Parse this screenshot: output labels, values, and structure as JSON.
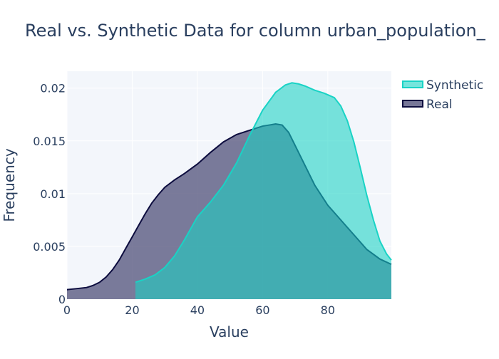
{
  "chart_data": {
    "type": "area",
    "title": "Real vs. Synthetic Data for column urban_population_",
    "xlabel": "Value",
    "ylabel": "Frequency",
    "xlim": [
      0,
      99.5
    ],
    "ylim": [
      0,
      0.0216
    ],
    "x_ticks": [
      0,
      20,
      40,
      60,
      80
    ],
    "x_tick_labels": [
      "0",
      "20",
      "40",
      "60",
      "80"
    ],
    "y_ticks": [
      0,
      0.005,
      0.01,
      0.015,
      0.02
    ],
    "y_tick_labels": [
      "0",
      "0.005",
      "0.01",
      "0.015",
      "0.02"
    ],
    "grid": true,
    "legend_position": "top-right",
    "series": [
      {
        "name": "Synthetic",
        "color": "#19d3c5",
        "fill": "#19d3c5",
        "x": [
          21,
          24,
          27,
          30,
          33,
          36,
          40,
          44,
          48,
          52,
          56,
          60,
          64,
          67,
          69,
          71,
          73,
          76,
          79,
          82,
          84,
          86,
          88,
          90,
          92,
          94,
          96,
          98,
          99.5
        ],
        "y": [
          0.0016,
          0.0019,
          0.0023,
          0.003,
          0.0041,
          0.0056,
          0.0078,
          0.0092,
          0.0108,
          0.0129,
          0.0155,
          0.0179,
          0.0196,
          0.0203,
          0.0205,
          0.0204,
          0.0202,
          0.0198,
          0.0195,
          0.0191,
          0.0183,
          0.0169,
          0.0149,
          0.0124,
          0.0098,
          0.0075,
          0.0055,
          0.0043,
          0.0037
        ]
      },
      {
        "name": "Real",
        "color": "#0d0d3f",
        "fill": "#4a4a75",
        "x": [
          0,
          3,
          6,
          8,
          10,
          12,
          14,
          16,
          18,
          20,
          22,
          24,
          26,
          28,
          30,
          33,
          36,
          40,
          44,
          48,
          52,
          56,
          60,
          62,
          64,
          66,
          68,
          72,
          76,
          80,
          84,
          88,
          92,
          96,
          99.5
        ],
        "y": [
          0.0009,
          0.001,
          0.0011,
          0.0013,
          0.0016,
          0.0021,
          0.0028,
          0.0037,
          0.0048,
          0.0059,
          0.007,
          0.0081,
          0.0091,
          0.0099,
          0.0106,
          0.0113,
          0.0119,
          0.0128,
          0.0139,
          0.0149,
          0.0156,
          0.016,
          0.0164,
          0.0165,
          0.0166,
          0.0165,
          0.0158,
          0.0133,
          0.0108,
          0.0089,
          0.0075,
          0.0061,
          0.0047,
          0.0038,
          0.0033
        ]
      }
    ]
  }
}
